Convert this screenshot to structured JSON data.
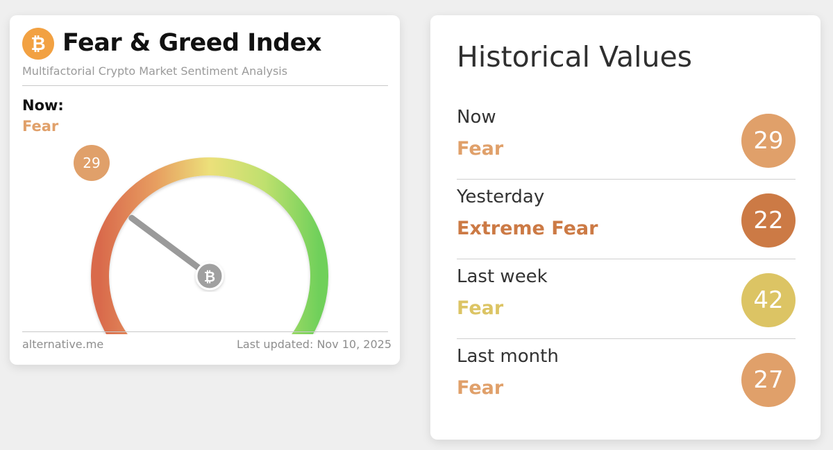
{
  "index_card": {
    "logo_glyph": "₿",
    "logo_icon": "bitcoin-icon",
    "title": "Fear & Greed Index",
    "subtitle": "Multifactorial Crypto Market Sentiment Analysis",
    "now_label": "Now:",
    "now_classification": "Fear",
    "now_value": "29",
    "gauge_value": 29,
    "gauge_min": 0,
    "gauge_max": 100,
    "hub_glyph": "₿",
    "source": "alternative.me",
    "last_updated": "Last updated: Nov 10, 2025",
    "colors": {
      "logo": "#f2a142",
      "fear": "#e0a06a",
      "gauge_low": "#d96a4c",
      "gauge_mid": "#ece07a",
      "gauge_high": "#6fd05a",
      "needle": "#9a9a9a"
    }
  },
  "history_card": {
    "title": "Historical Values",
    "rows": [
      {
        "label": "Now",
        "classification": "Fear",
        "value": "29",
        "color": "#e0a06a"
      },
      {
        "label": "Yesterday",
        "classification": "Extreme Fear",
        "value": "22",
        "color": "#cc7a45"
      },
      {
        "label": "Last week",
        "classification": "Fear",
        "value": "42",
        "color": "#dcc464"
      },
      {
        "label": "Last month",
        "classification": "Fear",
        "value": "27",
        "color": "#e0a06a"
      }
    ]
  }
}
